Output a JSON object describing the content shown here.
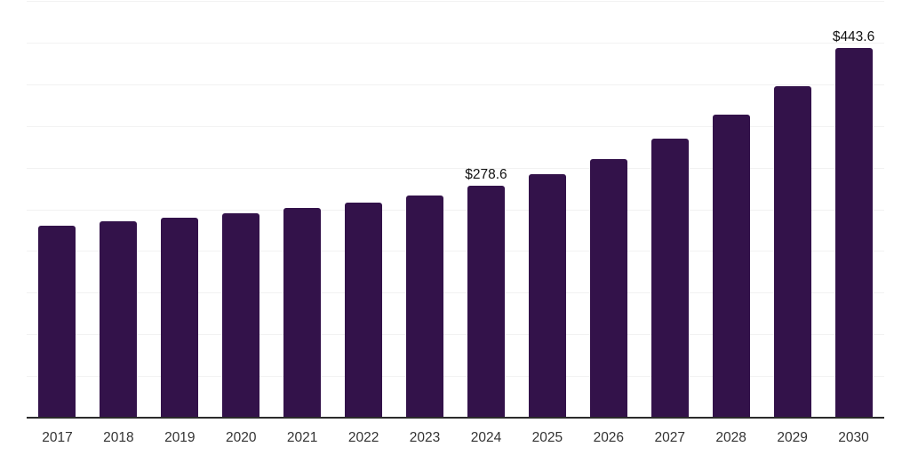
{
  "chart_data": {
    "type": "bar",
    "title": "",
    "xlabel": "",
    "ylabel": "",
    "categories": [
      "2017",
      "2018",
      "2019",
      "2020",
      "2021",
      "2022",
      "2023",
      "2024",
      "2025",
      "2026",
      "2027",
      "2028",
      "2029",
      "2030"
    ],
    "values": [
      230.8,
      235.1,
      240.3,
      245.7,
      252.0,
      258.5,
      267.0,
      278.6,
      292.5,
      310.6,
      335.0,
      363.8,
      397.8,
      443.6
    ],
    "bar_labels": [
      "",
      "",
      "",
      "",
      "",
      "",
      "",
      "$278.6",
      "",
      "",
      "",
      "",
      "",
      "$443.6"
    ],
    "ylim": [
      0,
      500
    ],
    "gridline_step": 50,
    "grid": "horizontal-only",
    "legend": "none",
    "colors": {
      "bar": "#33124a",
      "gridline": "#f2f2f2",
      "axis": "#2b2b2b",
      "tick_text": "#333333",
      "value_label_text": "#111111",
      "background": "#ffffff"
    }
  }
}
